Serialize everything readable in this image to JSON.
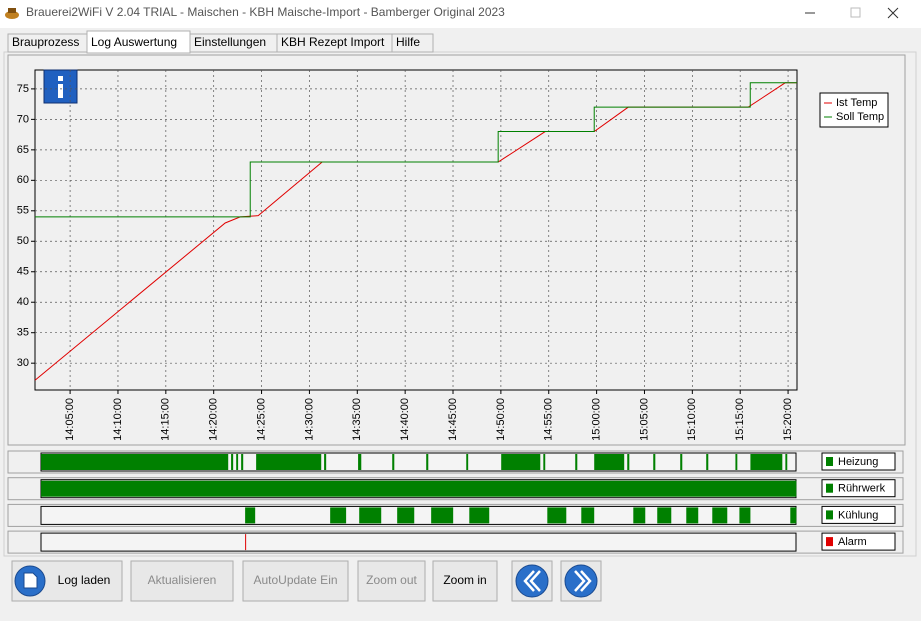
{
  "window": {
    "title": "Brauerei2WiFi V 2.04 TRIAL - Maischen - KBH Maische-Import - Bamberger Original 2023"
  },
  "tabs": [
    "Brauprozess",
    "Log Auswertung",
    "Einstellungen",
    "KBH Rezept Import",
    "Hilfe"
  ],
  "active_tab": 1,
  "chart_data": {
    "type": "line",
    "xlim": [
      "14:01:20",
      "15:20:56"
    ],
    "xticks": [
      "14:05:00",
      "14:10:00",
      "14:15:00",
      "14:20:00",
      "14:25:00",
      "14:30:00",
      "14:35:00",
      "14:40:00",
      "14:45:00",
      "14:50:00",
      "14:55:00",
      "15:00:00",
      "15:05:00",
      "15:10:00",
      "15:15:00",
      "15:20:00"
    ],
    "ylim": [
      25.6,
      78.1
    ],
    "yticks": [
      30,
      35,
      40,
      45,
      50,
      55,
      60,
      65,
      70,
      75
    ],
    "grid": true,
    "legend": "upper right",
    "series": [
      {
        "name": "Ist Temp",
        "color": "#e00000",
        "x": [
          "14:01:20",
          "14:21:12",
          "14:22:46",
          "14:24:39",
          "14:31:20",
          "14:49:43",
          "14:54:38",
          "14:59:45",
          "15:03:18",
          "15:15:50",
          "15:19:42",
          "15:20:56"
        ],
        "values": [
          27.2,
          53,
          54,
          54.2,
          63,
          63,
          68,
          68,
          72,
          72,
          76,
          76
        ]
      },
      {
        "name": "Soll Temp",
        "color": "#008000",
        "x": [
          "14:01:20",
          "14:23:49",
          "14:23:49",
          "14:49:43",
          "14:49:43",
          "14:59:45",
          "14:59:45",
          "15:16:03",
          "15:16:03",
          "15:20:56"
        ],
        "values": [
          54,
          54,
          63,
          63,
          68,
          68,
          72,
          72,
          76,
          76
        ]
      }
    ]
  },
  "status_rows": [
    {
      "name": "Heizung",
      "color": "#008000",
      "segments": [
        [
          "14:01:58",
          "14:21:31"
        ],
        [
          "14:21:49",
          "14:22:02"
        ],
        [
          "14:22:21",
          "14:22:33"
        ],
        [
          "14:22:52",
          "14:23:05"
        ],
        [
          "14:24:26",
          "14:31:14"
        ],
        [
          "14:31:32",
          "14:31:45"
        ],
        [
          "14:35:05",
          "14:35:25"
        ],
        [
          "14:38:39",
          "14:38:52"
        ],
        [
          "14:42:12",
          "14:42:25"
        ],
        [
          "14:46:23",
          "14:46:35"
        ],
        [
          "14:50:02",
          "14:54:07"
        ],
        [
          "14:54:26",
          "14:54:38"
        ],
        [
          "14:57:46",
          "14:57:59"
        ],
        [
          "14:59:45",
          "15:02:53"
        ],
        [
          "15:03:12",
          "15:03:25"
        ],
        [
          "15:05:55",
          "15:06:08"
        ],
        [
          "15:08:44",
          "15:08:57"
        ],
        [
          "15:11:27",
          "15:11:40"
        ],
        [
          "15:14:30",
          "15:14:42"
        ],
        [
          "15:16:04",
          "15:19:24"
        ],
        [
          "15:19:43",
          "15:19:55"
        ]
      ]
    },
    {
      "name": "Rührwerk",
      "color": "#008000",
      "segments": [
        [
          "14:01:58",
          "15:20:52"
        ]
      ]
    },
    {
      "name": "Kühlung",
      "color": "#008000",
      "segments": [
        [
          "14:23:17",
          "14:24:20"
        ],
        [
          "14:32:10",
          "14:33:50"
        ],
        [
          "14:35:12",
          "14:37:30"
        ],
        [
          "14:39:10",
          "14:40:57"
        ],
        [
          "14:42:43",
          "14:45:01"
        ],
        [
          "14:46:42",
          "14:48:47"
        ],
        [
          "14:54:51",
          "14:56:50"
        ],
        [
          "14:58:24",
          "14:59:45"
        ],
        [
          "15:03:50",
          "15:05:05"
        ],
        [
          "15:06:20",
          "15:07:48"
        ],
        [
          "15:09:22",
          "15:10:37"
        ],
        [
          "15:12:05",
          "15:13:39"
        ],
        [
          "15:14:55",
          "15:16:04"
        ],
        [
          "15:20:14",
          "15:20:52"
        ]
      ]
    },
    {
      "name": "Alarm",
      "color": "#e00000",
      "segments": [
        [
          "14:23:17",
          "14:23:23"
        ]
      ]
    }
  ],
  "buttons": [
    {
      "label": "Log laden",
      "enabled": true
    },
    {
      "label": "Aktualisieren",
      "enabled": false
    },
    {
      "label": "AutoUpdate Ein",
      "enabled": false
    },
    {
      "label": "Zoom out",
      "enabled": false
    },
    {
      "label": "Zoom in",
      "enabled": true
    }
  ]
}
